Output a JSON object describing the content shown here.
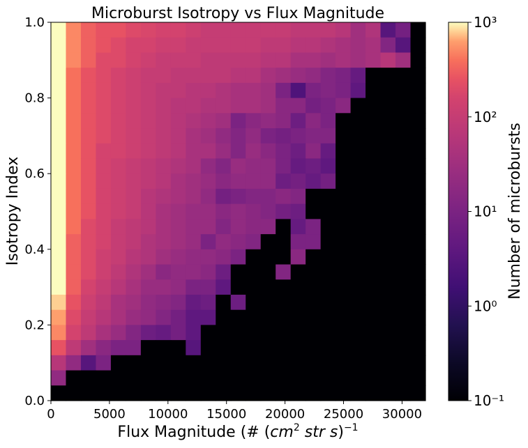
{
  "chart_data": {
    "type": "heatmap",
    "title": "Microburst Isotropy vs Flux Magnitude",
    "xlabel": "Flux Magnitude (# (cm² str s)⁻¹)",
    "ylabel": "Isotropy Index",
    "colorbar_label": "Number of microbursts",
    "colormap": "magma",
    "color_scale": "log",
    "clim": [
      0.1,
      1000
    ],
    "xlim": [
      0,
      32000
    ],
    "ylim": [
      0,
      1.0
    ],
    "x_ticks": [
      0,
      5000,
      10000,
      15000,
      20000,
      25000,
      30000
    ],
    "x_tick_labels": [
      "0",
      "5000",
      "10000",
      "15000",
      "20000",
      "25000",
      "30000"
    ],
    "y_ticks": [
      0.0,
      0.2,
      0.4,
      0.6,
      0.8,
      1.0
    ],
    "y_tick_labels": [
      "0.0",
      "0.2",
      "0.4",
      "0.6",
      "0.8",
      "1.0"
    ],
    "colorbar_ticks": [
      0.1,
      1,
      10,
      100,
      1000
    ],
    "colorbar_tick_labels": [
      "10⁻¹",
      "10⁰",
      "10¹",
      "10²",
      "10³"
    ],
    "grid": false,
    "n_x_bins": 25,
    "n_y_bins": 25,
    "bin_centers_flux": [
      640,
      1920,
      3200,
      4480,
      5760,
      7040,
      8320,
      9600,
      10880,
      12160,
      13440,
      14720,
      16000,
      17280,
      18560,
      19840,
      21120,
      22400,
      23680,
      24960,
      26240,
      27520,
      28800,
      30080,
      31360
    ],
    "bin_centers_isotropy": [
      0.02,
      0.06,
      0.1,
      0.14,
      0.18,
      0.22,
      0.26,
      0.3,
      0.34,
      0.38,
      0.42,
      0.46,
      0.5,
      0.54,
      0.58,
      0.62,
      0.66,
      0.7,
      0.74,
      0.78,
      0.82,
      0.86,
      0.9,
      0.94,
      0.98
    ],
    "counts_log10_rows_top_to_bottom": [
      [
        3.0,
        2.7,
        2.5,
        2.4,
        2.4,
        2.3,
        2.25,
        2.2,
        2.2,
        2.1,
        2.0,
        2.0,
        2.0,
        2.0,
        2.0,
        2.0,
        1.9,
        1.9,
        1.9,
        1.8,
        1.5,
        1.7,
        0.5,
        0.9,
        -1
      ],
      [
        3.0,
        2.7,
        2.5,
        2.4,
        2.3,
        2.2,
        2.2,
        2.1,
        2.1,
        2.0,
        2.0,
        2.0,
        2.0,
        2.0,
        1.9,
        1.9,
        1.8,
        1.8,
        1.7,
        1.6,
        1.5,
        1.6,
        1.1,
        0.5,
        -1
      ],
      [
        3.0,
        2.7,
        2.5,
        2.3,
        2.3,
        2.2,
        2.1,
        2.0,
        2.0,
        2.0,
        1.9,
        1.9,
        1.9,
        1.9,
        1.8,
        1.8,
        1.6,
        1.6,
        1.5,
        1.6,
        1.5,
        1.6,
        1.8,
        1.5,
        -1
      ],
      [
        3.0,
        2.6,
        2.4,
        2.3,
        2.2,
        2.1,
        2.0,
        2.0,
        1.9,
        1.9,
        1.9,
        1.9,
        1.8,
        1.8,
        1.6,
        1.5,
        1.4,
        1.3,
        1.1,
        1.0,
        0.7,
        -1,
        -1,
        -1,
        -1
      ],
      [
        3.0,
        2.6,
        2.4,
        2.3,
        2.2,
        2.1,
        2.0,
        1.9,
        1.9,
        1.8,
        1.8,
        1.7,
        1.6,
        1.6,
        1.5,
        1.0,
        0.4,
        1.0,
        1.1,
        1.0,
        0.6,
        -1,
        -1,
        -1,
        -1
      ],
      [
        3.0,
        2.6,
        2.4,
        2.3,
        2.2,
        2.1,
        2.0,
        1.9,
        1.8,
        1.8,
        1.7,
        1.7,
        1.6,
        1.6,
        1.5,
        1.2,
        1.2,
        0.9,
        1.0,
        1.2,
        -1,
        -1,
        -1,
        -1,
        -1
      ],
      [
        3.0,
        2.6,
        2.4,
        2.3,
        2.2,
        2.1,
        2.0,
        1.9,
        1.8,
        1.7,
        1.6,
        1.5,
        1.0,
        1.2,
        1.3,
        1.2,
        0.8,
        1.2,
        1.0,
        -1,
        -1,
        -1,
        -1,
        -1,
        -1
      ],
      [
        3.0,
        2.6,
        2.4,
        2.3,
        2.2,
        2.1,
        2.0,
        1.9,
        1.8,
        1.6,
        1.5,
        1.3,
        1.1,
        1.3,
        1.0,
        0.9,
        1.0,
        1.1,
        1.1,
        -1,
        -1,
        -1,
        -1,
        -1,
        -1
      ],
      [
        3.0,
        2.6,
        2.4,
        2.2,
        2.2,
        2.1,
        2.0,
        1.9,
        1.8,
        1.6,
        1.6,
        1.4,
        1.1,
        1.4,
        1.2,
        1.0,
        0.8,
        1.2,
        0.7,
        -1,
        -1,
        -1,
        -1,
        -1,
        -1
      ],
      [
        3.0,
        2.6,
        2.4,
        2.2,
        2.1,
        2.0,
        1.9,
        1.8,
        1.7,
        1.6,
        1.3,
        1.1,
        1.4,
        1.3,
        1.3,
        1.0,
        0.7,
        0.8,
        0.6,
        -1,
        -1,
        -1,
        -1,
        -1,
        -1
      ],
      [
        3.0,
        2.6,
        2.4,
        2.2,
        2.1,
        2.0,
        1.9,
        1.8,
        1.6,
        1.5,
        1.4,
        1.2,
        1.3,
        1.3,
        1.3,
        0.8,
        0.9,
        0.7,
        0.9,
        -1,
        -1,
        -1,
        -1,
        -1,
        -1
      ],
      [
        3.0,
        2.6,
        2.4,
        2.2,
        2.1,
        2.0,
        1.8,
        1.7,
        1.6,
        1.5,
        1.3,
        0.9,
        1.0,
        1.1,
        1.1,
        1.2,
        1.1,
        -1,
        -1,
        -1,
        -1,
        -1,
        -1,
        -1,
        -1
      ],
      [
        3.0,
        2.6,
        2.4,
        2.2,
        2.1,
        2.0,
        1.8,
        1.6,
        1.5,
        1.4,
        1.4,
        1.2,
        1.3,
        1.2,
        1.1,
        0.9,
        0.8,
        -1,
        -1,
        -1,
        -1,
        -1,
        -1,
        -1,
        -1
      ],
      [
        3.0,
        2.6,
        2.3,
        2.2,
        2.0,
        1.9,
        1.8,
        1.6,
        1.5,
        1.4,
        1.4,
        1.1,
        1.3,
        1.2,
        1.2,
        -1,
        0.7,
        1.0,
        -1,
        -1,
        -1,
        -1,
        -1,
        -1,
        -1
      ],
      [
        3.0,
        2.5,
        2.3,
        2.2,
        2.0,
        1.9,
        1.7,
        1.6,
        1.5,
        1.4,
        1.0,
        1.3,
        1.2,
        1.1,
        -1,
        -1,
        1.0,
        1.0,
        -1,
        -1,
        -1,
        -1,
        -1,
        -1,
        -1
      ],
      [
        3.0,
        2.5,
        2.3,
        2.1,
        2.0,
        1.8,
        1.7,
        1.5,
        1.4,
        1.3,
        1.3,
        1.2,
        1.0,
        -1,
        -1,
        -1,
        1.2,
        -1,
        -1,
        -1,
        -1,
        -1,
        -1,
        -1,
        -1
      ],
      [
        3.0,
        2.5,
        2.3,
        2.1,
        1.9,
        1.7,
        1.5,
        1.2,
        1.3,
        1.3,
        1.2,
        0.8,
        -1,
        -1,
        -1,
        1.1,
        -1,
        -1,
        -1,
        -1,
        -1,
        -1,
        -1,
        -1,
        -1
      ],
      [
        3.0,
        2.5,
        2.2,
        2.0,
        1.8,
        1.6,
        1.4,
        1.4,
        1.3,
        1.0,
        1.0,
        0.6,
        -1,
        -1,
        -1,
        -1,
        -1,
        -1,
        -1,
        -1,
        -1,
        -1,
        -1,
        -1,
        -1
      ],
      [
        2.9,
        2.4,
        2.1,
        1.9,
        1.6,
        1.5,
        1.3,
        1.2,
        1.1,
        0.7,
        0.8,
        -1,
        0.8,
        -1,
        -1,
        -1,
        -1,
        -1,
        -1,
        -1,
        -1,
        -1,
        -1,
        -1,
        -1
      ],
      [
        2.8,
        2.3,
        2.0,
        1.8,
        1.6,
        1.4,
        1.3,
        1.1,
        0.9,
        0.6,
        0.6,
        -1,
        -1,
        -1,
        -1,
        -1,
        -1,
        -1,
        -1,
        -1,
        -1,
        -1,
        -1,
        -1,
        -1
      ],
      [
        2.7,
        2.2,
        1.9,
        1.6,
        1.4,
        1.1,
        0.8,
        0.7,
        0.9,
        0.6,
        -1,
        -1,
        -1,
        -1,
        -1,
        -1,
        -1,
        -1,
        -1,
        -1,
        -1,
        -1,
        -1,
        -1,
        -1
      ],
      [
        2.4,
        1.9,
        1.5,
        1.2,
        1.0,
        1.0,
        -1,
        -1,
        -1,
        0.5,
        -1,
        -1,
        -1,
        -1,
        -1,
        -1,
        -1,
        -1,
        -1,
        -1,
        -1,
        -1,
        -1,
        -1,
        -1
      ],
      [
        1.8,
        1.3,
        0.5,
        1.0,
        -1,
        -1,
        -1,
        -1,
        -1,
        -1,
        -1,
        -1,
        -1,
        -1,
        -1,
        -1,
        -1,
        -1,
        -1,
        -1,
        -1,
        -1,
        -1,
        -1,
        -1
      ],
      [
        1.3,
        -1,
        -1,
        -1,
        -1,
        -1,
        -1,
        -1,
        -1,
        -1,
        -1,
        -1,
        -1,
        -1,
        -1,
        -1,
        -1,
        -1,
        -1,
        -1,
        -1,
        -1,
        -1,
        -1,
        -1
      ],
      [
        -1,
        -1,
        -1,
        -1,
        -1,
        -1,
        -1,
        -1,
        -1,
        -1,
        -1,
        -1,
        -1,
        -1,
        -1,
        -1,
        -1,
        -1,
        -1,
        -1,
        -1,
        -1,
        -1,
        -1,
        -1
      ]
    ]
  }
}
